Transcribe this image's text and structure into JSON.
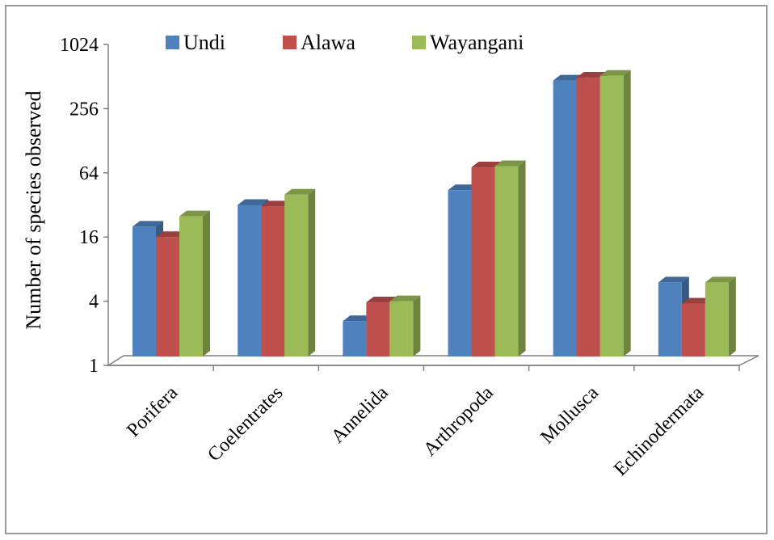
{
  "chart_data": {
    "type": "bar",
    "subtype": "3d-clustered-column",
    "y_scale": "log2",
    "ylim": [
      1,
      1024
    ],
    "yticks": [
      "1",
      "4",
      "16",
      "64",
      "256",
      "1024"
    ],
    "ylabel": "Number of species observed",
    "xlabel": "",
    "title": "",
    "legend_position": "top",
    "categories": [
      "Porifera",
      "Coelentrates",
      "Annelida",
      "Arthropoda",
      "Mollusca",
      "Echinodermata"
    ],
    "series": [
      {
        "name": "Undi",
        "color": "#4F81BD",
        "values": [
          20,
          32,
          2.6,
          44,
          470,
          6
        ]
      },
      {
        "name": "Alawa",
        "color": "#C0504D",
        "values": [
          16,
          31,
          3.9,
          72,
          500,
          3.8
        ]
      },
      {
        "name": "Wayangani",
        "color": "#9BBB59",
        "values": [
          25,
          40,
          4,
          74,
          520,
          6
        ]
      }
    ]
  }
}
